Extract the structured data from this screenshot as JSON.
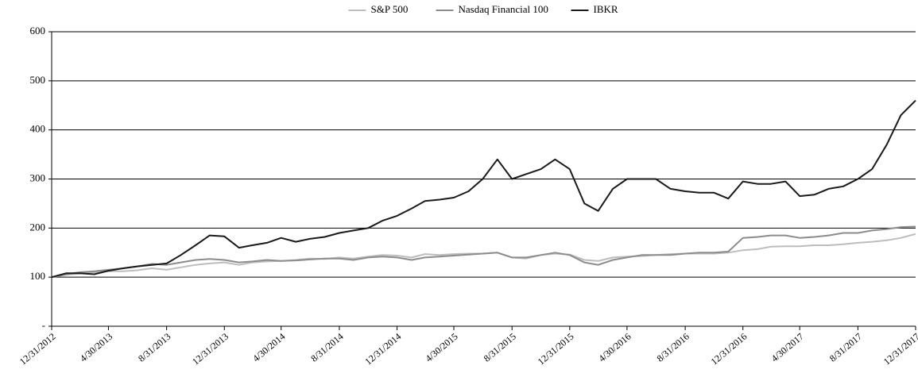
{
  "chart_data": {
    "type": "line",
    "x": [
      "12/31/2012",
      "1/31/2013",
      "2/28/2013",
      "3/31/2013",
      "4/30/2013",
      "5/31/2013",
      "6/30/2013",
      "7/31/2013",
      "8/31/2013",
      "9/30/2013",
      "10/31/2013",
      "11/30/2013",
      "12/31/2013",
      "1/31/2014",
      "2/28/2014",
      "3/31/2014",
      "4/30/2014",
      "5/31/2014",
      "6/30/2014",
      "7/31/2014",
      "8/31/2014",
      "9/30/2014",
      "10/31/2014",
      "11/30/2014",
      "12/31/2014",
      "1/31/2015",
      "2/28/2015",
      "3/31/2015",
      "4/30/2015",
      "5/31/2015",
      "6/30/2015",
      "7/31/2015",
      "8/31/2015",
      "9/30/2015",
      "10/31/2015",
      "11/30/2015",
      "12/31/2015",
      "1/31/2016",
      "2/29/2016",
      "3/31/2016",
      "4/30/2016",
      "5/31/2016",
      "6/30/2016",
      "7/31/2016",
      "8/31/2016",
      "9/30/2016",
      "10/31/2016",
      "11/30/2016",
      "12/31/2016",
      "1/31/2017",
      "2/28/2017",
      "3/31/2017",
      "4/30/2017",
      "5/31/2017",
      "6/30/2017",
      "7/31/2017",
      "8/31/2017",
      "9/30/2017",
      "10/31/2017",
      "11/30/2017",
      "12/31/2017"
    ],
    "series": [
      {
        "name": "S&P 500",
        "color": "#bdbdbd",
        "values": [
          100,
          105,
          107,
          110,
          112,
          112,
          114,
          118,
          115,
          120,
          125,
          128,
          130,
          125,
          130,
          132,
          133,
          135,
          138,
          137,
          140,
          138,
          142,
          145,
          144,
          140,
          147,
          145,
          147,
          148,
          148,
          150,
          140,
          138,
          145,
          148,
          146,
          135,
          133,
          140,
          142,
          143,
          145,
          147,
          148,
          148,
          148,
          150,
          155,
          157,
          162,
          163,
          163,
          165,
          165,
          167,
          170,
          172,
          175,
          180,
          188
        ]
      },
      {
        "name": "Nasdaq Financial 100",
        "color": "#8c8c8c",
        "values": [
          100,
          106,
          110,
          112,
          115,
          118,
          122,
          127,
          125,
          130,
          135,
          137,
          135,
          130,
          132,
          135,
          133,
          134,
          136,
          138,
          138,
          135,
          140,
          142,
          140,
          135,
          140,
          142,
          144,
          146,
          148,
          150,
          140,
          140,
          145,
          150,
          145,
          130,
          125,
          135,
          140,
          145,
          145,
          145,
          148,
          150,
          150,
          152,
          180,
          182,
          185,
          185,
          180,
          182,
          185,
          190,
          190,
          195,
          198,
          202,
          203
        ]
      },
      {
        "name": "IBKR",
        "color": "#1a1a1a",
        "values": [
          100,
          108,
          108,
          106,
          113,
          118,
          122,
          125,
          128,
          145,
          165,
          185,
          183,
          160,
          165,
          170,
          180,
          172,
          178,
          182,
          190,
          195,
          200,
          215,
          225,
          240,
          255,
          258,
          262,
          275,
          300,
          340,
          300,
          310,
          320,
          340,
          320,
          250,
          235,
          280,
          300,
          300,
          300,
          280,
          275,
          272,
          272,
          260,
          295,
          290,
          290,
          295,
          265,
          268,
          280,
          285,
          300,
          320,
          370,
          430,
          460
        ]
      }
    ],
    "xlim": [
      "12/31/2012",
      "12/31/2017"
    ],
    "xticks": [
      "12/31/2012",
      "4/30/2013",
      "8/31/2013",
      "12/31/2013",
      "4/30/2014",
      "8/31/2014",
      "12/31/2014",
      "4/30/2015",
      "8/31/2015",
      "12/31/2015",
      "4/30/2016",
      "8/31/2016",
      "12/31/2016",
      "4/30/2017",
      "8/31/2017",
      "12/31/2017"
    ],
    "ylim": [
      0,
      600
    ],
    "yticks": [
      {
        "value": 0,
        "label": "-"
      },
      100,
      200,
      300,
      400,
      500,
      600
    ],
    "grid": true,
    "legend": "top"
  }
}
